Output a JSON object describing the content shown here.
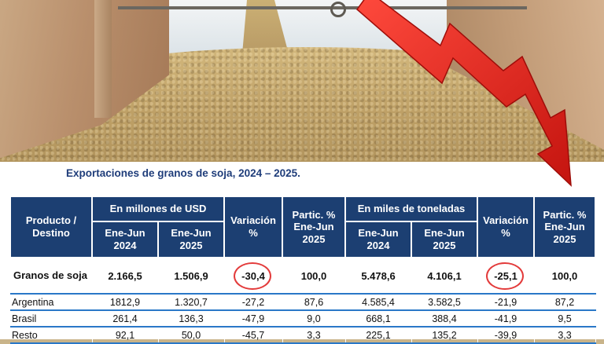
{
  "title": "Exportaciones de granos de soja, 2024 – 2025.",
  "colors": {
    "header_bg": "#1c3f72",
    "rule": "#2a78c8",
    "highlight_ring": "#e33b3b",
    "arrow": "#e3221c"
  },
  "table": {
    "col_product": "Producto / Destino",
    "group_usd": "En millones de USD",
    "group_tons": "En miles de toneladas",
    "variation": "Variación %",
    "share": "Partic. % Ene-Jun 2025",
    "sub_2024": "Ene-Jun 2024",
    "sub_2025": "Ene-Jun 2025",
    "rows": [
      {
        "product": "Granos de soja",
        "usd_2024": "2.166,5",
        "usd_2025": "1.506,9",
        "usd_var": "-30,4",
        "usd_share": "100,0",
        "t_2024": "5.478,6",
        "t_2025": "4.106,1",
        "t_var": "-25,1",
        "t_share": "100,0"
      },
      {
        "product": "Argentina",
        "usd_2024": "1812,9",
        "usd_2025": "1.320,7",
        "usd_var": "-27,2",
        "usd_share": "87,6",
        "t_2024": "4.585,4",
        "t_2025": "3.582,5",
        "t_var": "-21,9",
        "t_share": "87,2"
      },
      {
        "product": "Brasil",
        "usd_2024": "261,4",
        "usd_2025": "136,3",
        "usd_var": "-47,9",
        "usd_share": "9,0",
        "t_2024": "668,1",
        "t_2025": "388,4",
        "t_var": "-41,9",
        "t_share": "9,5"
      },
      {
        "product": "Resto",
        "usd_2024": "92,1",
        "usd_2025": "50,0",
        "usd_var": "-45,7",
        "usd_share": "3,3",
        "t_2024": "225,1",
        "t_2025": "135,2",
        "t_var": "-39,9",
        "t_share": "3,3"
      }
    ]
  }
}
